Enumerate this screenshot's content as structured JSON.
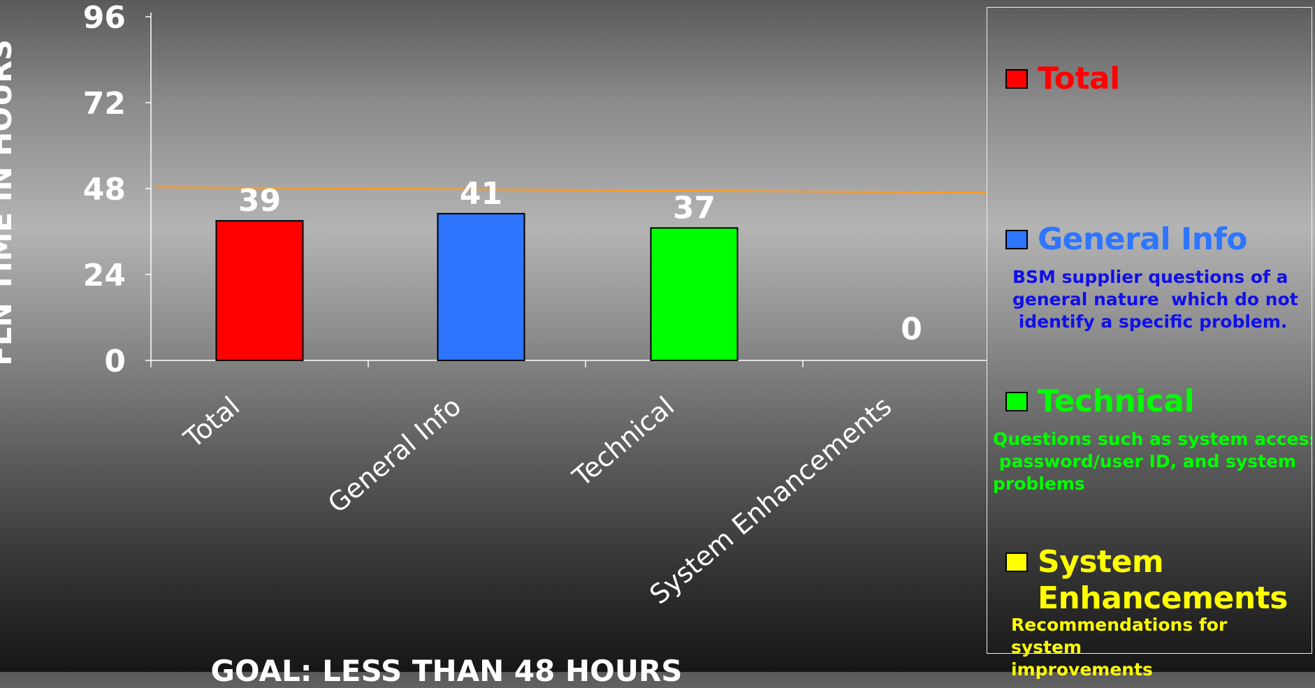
{
  "chart_data": {
    "type": "bar",
    "categories": [
      "Total",
      "General Info",
      "Technical",
      "System Enhancements"
    ],
    "values": [
      39,
      41,
      37,
      0
    ],
    "colors": [
      "#ff0000",
      "#2e75ff",
      "#00ff00",
      "#ffff00"
    ],
    "ylabel": "FLN TIME IN HOURS",
    "ylim": [
      0,
      96
    ],
    "yticks": [
      0,
      24,
      48,
      72,
      96
    ],
    "goal_line": 48,
    "goal_line_color": "#ff9a1f",
    "grid": false,
    "legend_position": "right",
    "caption": "GOAL:  LESS THAN 48 HOURS"
  },
  "legend": [
    {
      "label": "Total",
      "color": "#ff0000",
      "label_color": "#ff0000",
      "desc": ""
    },
    {
      "label": "General Info",
      "color": "#2e75ff",
      "label_color": "#2e75ff",
      "desc": "BSM supplier questions of a\ngeneral nature  which do not\n identify a specific problem.",
      "desc_color": "#1010e8"
    },
    {
      "label": "Technical",
      "color": "#00ff00",
      "label_color": "#00ff00",
      "desc": "Questions such as system access,\n password/user ID, and system\nproblems",
      "desc_color": "#00ff00"
    },
    {
      "label": "System\nEnhancements",
      "color": "#ffff00",
      "label_color": "#ffff00",
      "desc": "Recommendations for\nsystem\nimprovements",
      "desc_color": "#ffff00"
    }
  ]
}
